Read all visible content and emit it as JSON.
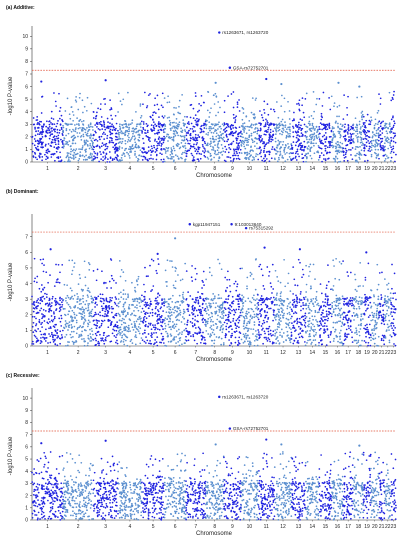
{
  "colors": {
    "dark": "#1f22e0",
    "light": "#5b8fcf",
    "threshold": "#e0523a",
    "axis": "#333333"
  },
  "chart_data": [
    {
      "type": "scatter",
      "panel_label": "(a)  Additive:",
      "xlabel": "Chromosome",
      "ylabel": "-log10 P-value",
      "ylim": [
        0,
        10.5
      ],
      "yticks": [
        0,
        1,
        2,
        3,
        4,
        5,
        6,
        7,
        8,
        9,
        10
      ],
      "threshold": 7.3,
      "chromosomes": [
        "1",
        "2",
        "3",
        "4",
        "5",
        "6",
        "7",
        "8",
        "9",
        "10",
        "11",
        "12",
        "13",
        "14",
        "15",
        "16",
        "17",
        "18",
        "19",
        "20",
        "21",
        "22",
        "23"
      ],
      "annotations": [
        {
          "label": "rs1263671, rs1263720",
          "chrom": 8,
          "pos": 0.75,
          "y": 10.3
        },
        {
          "label": "GSA-rs72752701",
          "chrom": 9,
          "pos": 0.35,
          "y": 7.5
        }
      ],
      "peak_points": [
        {
          "chrom": 8,
          "pos": 0.75,
          "y": 10.3
        },
        {
          "chrom": 9,
          "pos": 0.35,
          "y": 7.5
        },
        {
          "chrom": 11,
          "pos": 0.5,
          "y": 6.6
        },
        {
          "chrom": 3,
          "pos": 0.5,
          "y": 6.5
        },
        {
          "chrom": 1,
          "pos": 0.3,
          "y": 6.4
        },
        {
          "chrom": 8,
          "pos": 0.55,
          "y": 6.3
        },
        {
          "chrom": 16,
          "pos": 0.6,
          "y": 6.3
        },
        {
          "chrom": 18,
          "pos": 0.6,
          "y": 6.0
        },
        {
          "chrom": 12,
          "pos": 0.4,
          "y": 6.2
        }
      ]
    },
    {
      "type": "scatter",
      "panel_label": "(b)  Dominant:",
      "xlabel": "Chromosome",
      "ylabel": "-log10 P-value",
      "ylim": [
        0,
        8.2
      ],
      "yticks": [
        0,
        1,
        2,
        3,
        4,
        5,
        6,
        7
      ],
      "threshold": 7.3,
      "chromosomes": [
        "1",
        "2",
        "3",
        "4",
        "5",
        "6",
        "7",
        "8",
        "9",
        "10",
        "11",
        "12",
        "13",
        "14",
        "15",
        "16",
        "17",
        "18",
        "19",
        "20",
        "21",
        "22",
        "23"
      ],
      "annotations": [
        {
          "label": "kgp11947151",
          "chrom": 7,
          "pos": 0.2,
          "y": 7.8
        },
        {
          "label": "9:103013640",
          "chrom": 9,
          "pos": 0.45,
          "y": 7.8
        },
        {
          "label": "rs75315292",
          "chrom": 10,
          "pos": 0.3,
          "y": 7.55
        }
      ],
      "peak_points": [
        {
          "chrom": 7,
          "pos": 0.2,
          "y": 7.8
        },
        {
          "chrom": 9,
          "pos": 0.45,
          "y": 7.8
        },
        {
          "chrom": 10,
          "pos": 0.3,
          "y": 7.55
        },
        {
          "chrom": 6,
          "pos": 0.5,
          "y": 6.9
        },
        {
          "chrom": 11,
          "pos": 0.4,
          "y": 6.3
        },
        {
          "chrom": 13,
          "pos": 0.6,
          "y": 6.2
        },
        {
          "chrom": 1,
          "pos": 0.6,
          "y": 6.2
        },
        {
          "chrom": 19,
          "pos": 0.4,
          "y": 6.0
        },
        {
          "chrom": 5,
          "pos": 0.7,
          "y": 5.9
        }
      ]
    },
    {
      "type": "scatter",
      "panel_label": "(c)  Recessive:",
      "xlabel": "Chromosome",
      "ylabel": "-log10 P-value",
      "ylim": [
        0,
        10.5
      ],
      "yticks": [
        0,
        1,
        2,
        3,
        4,
        5,
        6,
        7,
        8,
        9,
        10
      ],
      "threshold": 7.3,
      "chromosomes": [
        "1",
        "2",
        "3",
        "4",
        "5",
        "6",
        "7",
        "8",
        "9",
        "10",
        "11",
        "12",
        "13",
        "14",
        "15",
        "16",
        "17",
        "18",
        "19",
        "20",
        "21",
        "22",
        "23"
      ],
      "annotations": [
        {
          "label": "rs1263671, rs1263720",
          "chrom": 8,
          "pos": 0.75,
          "y": 10.1
        },
        {
          "label": "GSA-rs72752701",
          "chrom": 9,
          "pos": 0.35,
          "y": 7.5
        }
      ],
      "peak_points": [
        {
          "chrom": 8,
          "pos": 0.75,
          "y": 10.1
        },
        {
          "chrom": 9,
          "pos": 0.35,
          "y": 7.5
        },
        {
          "chrom": 11,
          "pos": 0.5,
          "y": 6.6
        },
        {
          "chrom": 3,
          "pos": 0.5,
          "y": 6.5
        },
        {
          "chrom": 1,
          "pos": 0.3,
          "y": 6.3
        },
        {
          "chrom": 8,
          "pos": 0.55,
          "y": 6.2
        },
        {
          "chrom": 18,
          "pos": 0.6,
          "y": 6.1
        },
        {
          "chrom": 12,
          "pos": 0.4,
          "y": 6.2
        }
      ]
    }
  ]
}
